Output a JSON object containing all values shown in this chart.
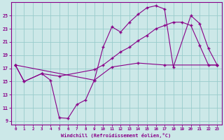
{
  "background_color": "#cce8e8",
  "grid_color": "#99cccc",
  "line_color": "#880088",
  "marker_color": "#880088",
  "xlabel": "Windchill (Refroidissement éolien,°C)",
  "xlim": [
    -0.5,
    23.5
  ],
  "ylim": [
    8.5,
    27
  ],
  "yticks": [
    9,
    11,
    13,
    15,
    17,
    19,
    21,
    23,
    25
  ],
  "xticks": [
    0,
    1,
    2,
    3,
    4,
    5,
    6,
    7,
    8,
    9,
    10,
    11,
    12,
    13,
    14,
    15,
    16,
    17,
    18,
    19,
    20,
    21,
    22,
    23
  ],
  "series1_x": [
    0,
    1,
    3,
    4,
    5,
    6,
    7,
    8,
    9,
    11,
    14,
    17,
    23
  ],
  "series1_y": [
    17.5,
    15.0,
    16.2,
    15.2,
    9.5,
    9.4,
    11.5,
    12.2,
    15.2,
    17.2,
    17.8,
    17.5,
    17.5
  ],
  "series2_x": [
    0,
    9,
    10,
    11,
    12,
    13,
    14,
    15,
    16,
    17,
    18,
    20,
    21,
    22,
    23
  ],
  "series2_y": [
    17.5,
    15.2,
    20.2,
    23.3,
    22.5,
    24.0,
    25.2,
    26.2,
    26.5,
    26.0,
    17.2,
    25.0,
    23.8,
    20.0,
    17.5
  ],
  "series3_x": [
    0,
    1,
    3,
    5,
    9,
    10,
    11,
    12,
    13,
    14,
    15,
    16,
    17,
    18,
    19,
    20,
    21,
    22,
    23
  ],
  "series3_y": [
    17.5,
    15.0,
    16.2,
    15.8,
    16.8,
    17.5,
    18.5,
    19.5,
    20.2,
    21.2,
    22.0,
    23.0,
    23.5,
    24.0,
    24.0,
    23.5,
    20.5,
    17.5,
    17.5
  ]
}
